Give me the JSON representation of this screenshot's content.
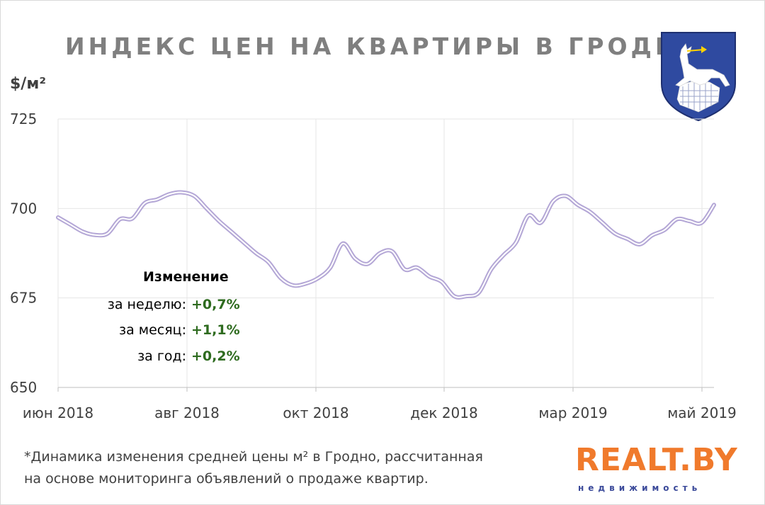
{
  "title": "ИНДЕКС ЦЕН НА КВАРТИРЫ В ГРОДНО",
  "unit_label": "$/м²",
  "stats": {
    "header": "Изменение",
    "rows": [
      {
        "label": "за неделю:",
        "value": "+0,7%"
      },
      {
        "label": "за месяц:",
        "value": "+1,1%"
      },
      {
        "label": "за год:",
        "value": "+0,2%"
      }
    ]
  },
  "footnote": {
    "line1": "*Динамика  изменения  средней цены м²  в Гродно, рассчитанная",
    "line2": "на основе мониторинга  объявлений  о продаже квартир."
  },
  "brand": {
    "name": "REALT.BY",
    "tagline": "недвижимость"
  },
  "emblem_icon": "grodno-coat-of-arms-icon",
  "colors": {
    "line": "#b4a7d6",
    "line_core": "#ffffff",
    "grid": "#e6e6e6",
    "title": "#7f7f7f",
    "positive": "#2e6b1f",
    "brand_orange": "#f07a2c",
    "brand_blue": "#3b4a9a"
  },
  "chart_data": {
    "type": "line",
    "title": "ИНДЕКС ЦЕН НА КВАРТИРЫ В ГРОДНО",
    "ylabel": "$/м²",
    "ylim": [
      650,
      725
    ],
    "yticks": [
      650,
      675,
      700,
      725
    ],
    "xtick_labels": [
      "июн 2018",
      "авг 2018",
      "окт 2018",
      "дек 2018",
      "мар 2019",
      "май 2019"
    ],
    "grid": true,
    "series": [
      {
        "values": [
          697.5,
          695.5,
          693.5,
          692.6,
          693.0,
          697.0,
          697.2,
          701.5,
          702.5,
          704.0,
          704.5,
          703.5,
          700.0,
          696.5,
          693.5,
          690.5,
          687.5,
          685.0,
          680.5,
          678.5,
          679.0,
          680.5,
          683.5,
          690.2,
          686.0,
          684.5,
          687.5,
          688.0,
          683.0,
          683.5,
          681.0,
          679.5,
          675.5,
          675.5,
          676.5,
          683.0,
          687.0,
          690.5,
          698.0,
          696.0,
          702.0,
          703.5,
          701.0,
          699.0,
          696.0,
          693.0,
          691.5,
          690.0,
          692.5,
          694.0,
          697.0,
          696.5,
          696.0,
          701.0
        ]
      }
    ]
  }
}
